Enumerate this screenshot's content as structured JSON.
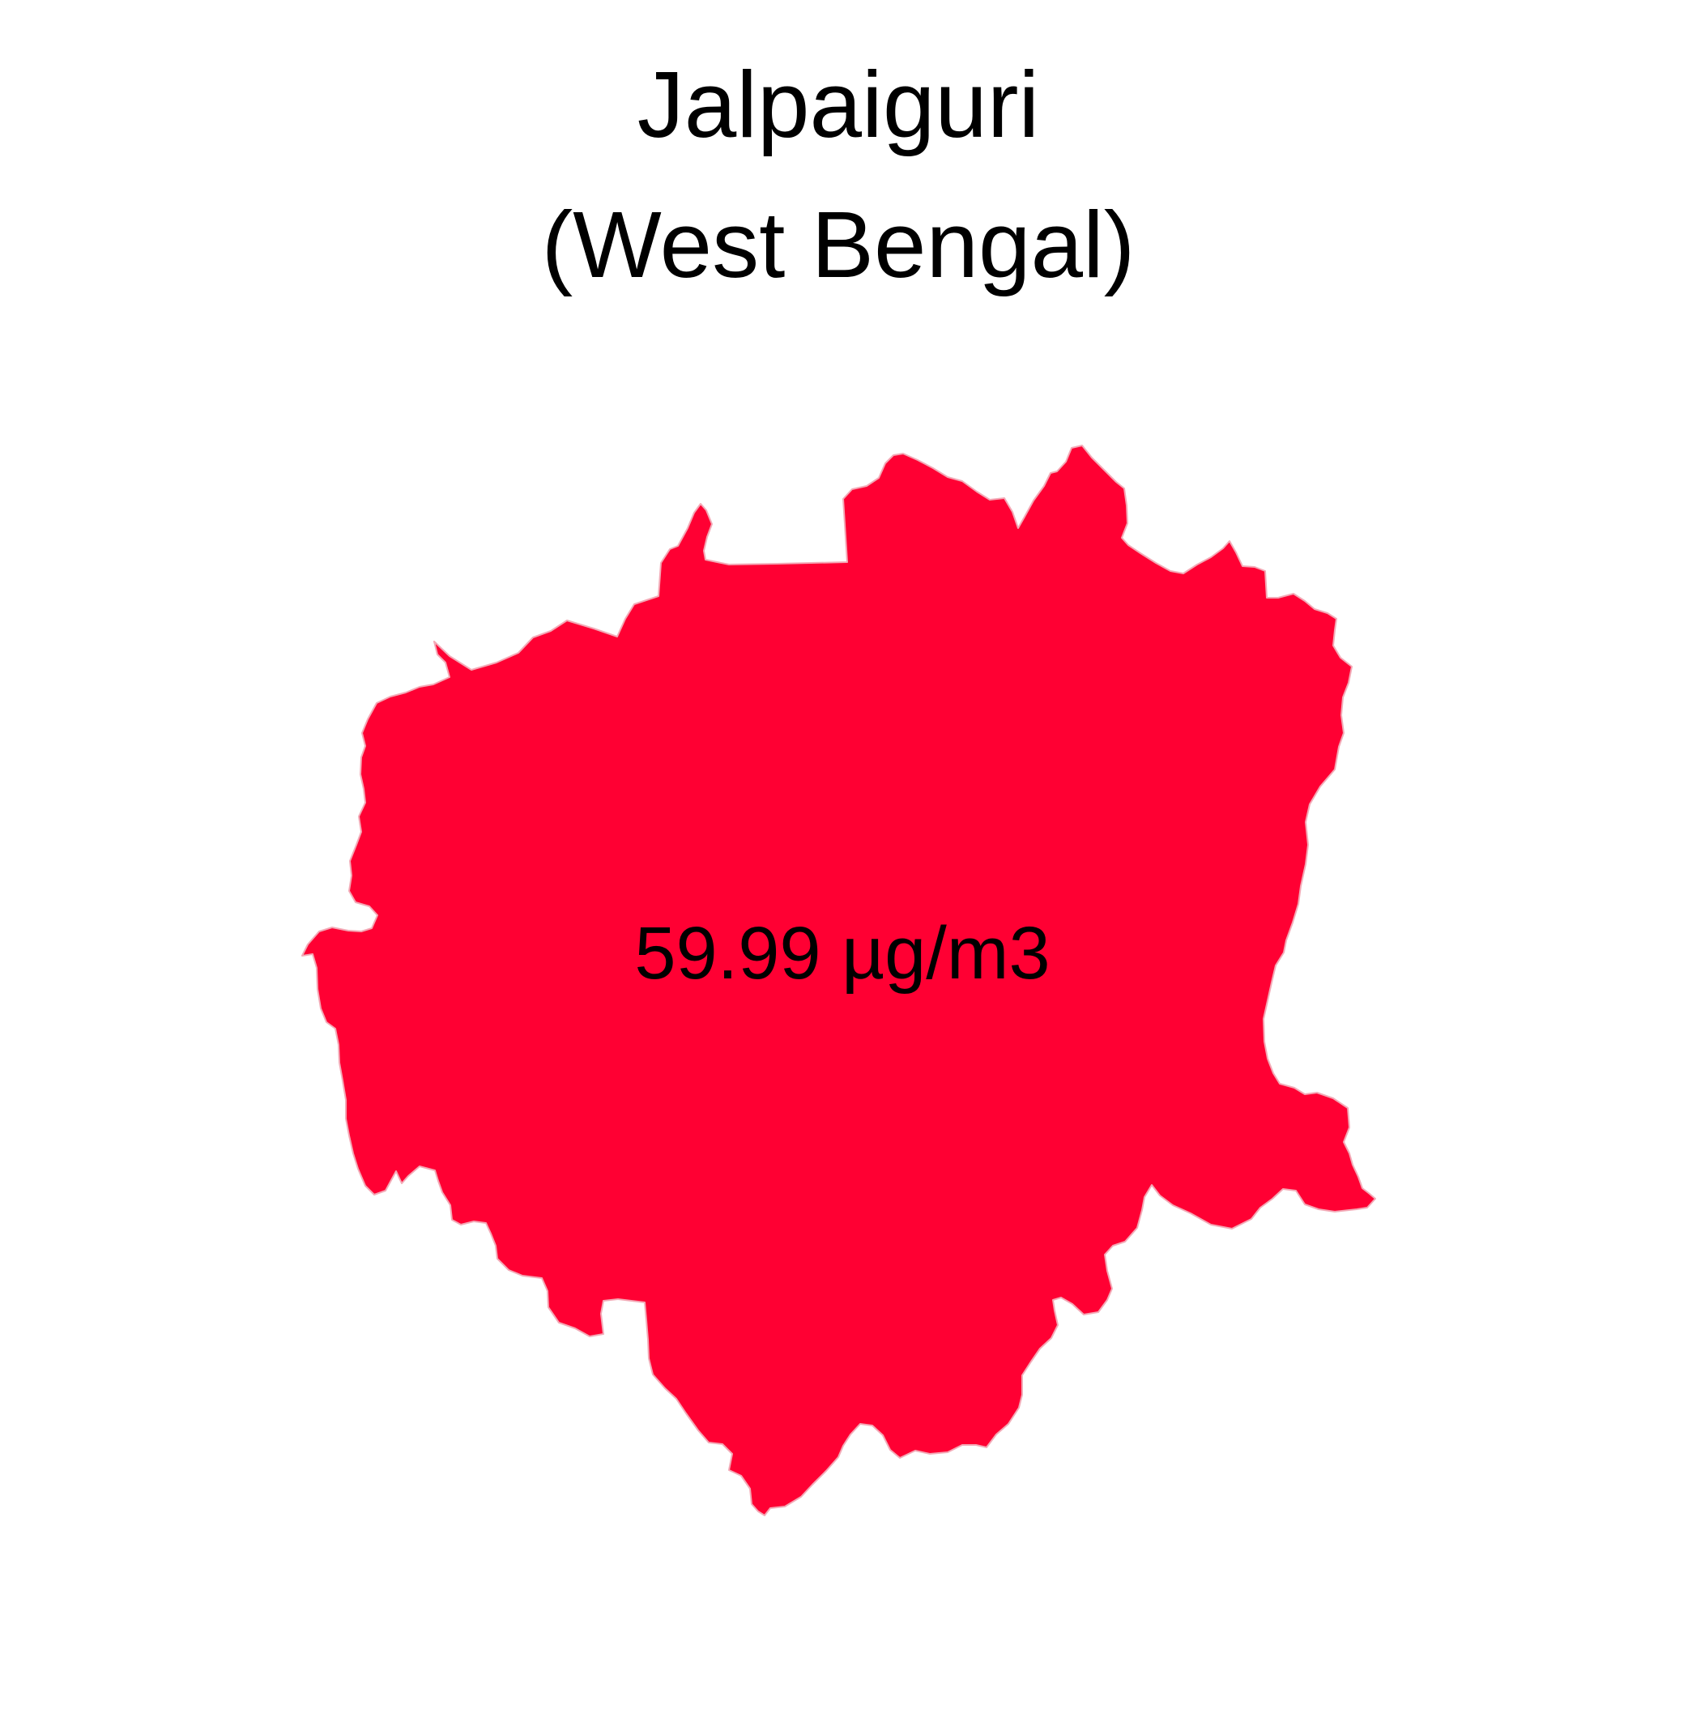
{
  "title": {
    "line1": "Jalpaiguri",
    "line2": "(West Bengal)"
  },
  "region": {
    "name": "Jalpaiguri",
    "fill_color": "#FF0033",
    "outline_color": "#f3a9b6"
  },
  "value_label": "59.99 µg/m3"
}
